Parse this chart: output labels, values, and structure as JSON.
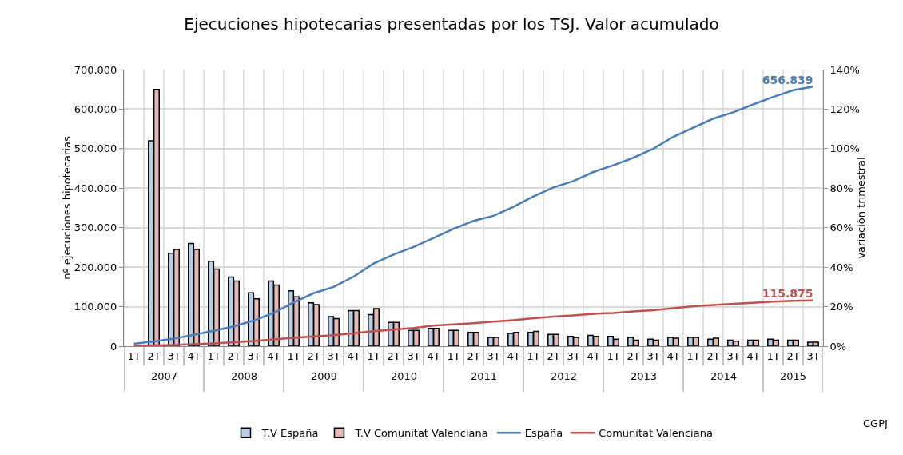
{
  "chart_data": {
    "type": "bar",
    "title": "Ejecuciones hipotecarias presentadas por los TSJ. Valor acumulado",
    "ylabel": "nº ejecuciones hipotecarias",
    "y2label": "variación trimestral",
    "categories": [
      "1T",
      "2T",
      "3T",
      "4T",
      "1T",
      "2T",
      "3T",
      "4T",
      "1T",
      "2T",
      "3T",
      "4T",
      "1T",
      "2T",
      "3T",
      "4T",
      "1T",
      "2T",
      "3T",
      "4T",
      "1T",
      "2T",
      "3T",
      "4T",
      "1T",
      "2T",
      "3T",
      "4T",
      "1T",
      "2T",
      "3T",
      "4T",
      "1T",
      "2T",
      "3T"
    ],
    "series": [
      {
        "name": "T.V España",
        "axis": "y2",
        "color": "#b9cde5",
        "values": [
          null,
          104,
          47,
          52,
          43,
          35,
          27,
          33,
          28,
          22,
          15,
          18,
          16,
          12,
          8,
          9,
          8,
          7,
          4.5,
          6.5,
          7,
          6,
          5,
          5.5,
          5,
          4.5,
          3.5,
          4.5,
          4.5,
          3.5,
          3,
          3,
          3.5,
          3,
          2
        ]
      },
      {
        "name": "T.V Comunitat Valenciana",
        "axis": "y2",
        "color": "#e6b9b8",
        "values": [
          null,
          130,
          49,
          49,
          39,
          33,
          24,
          31,
          25,
          21,
          14,
          18,
          19,
          12,
          8,
          9,
          8,
          7,
          4.5,
          7,
          7.5,
          6,
          4.5,
          5,
          3.5,
          3,
          3,
          4,
          4.5,
          4,
          2.5,
          3,
          3,
          3,
          2
        ]
      },
      {
        "name": "España",
        "type": "line",
        "axis": "y",
        "color": "#4a7ebb",
        "values": [
          6000,
          12000,
          19000,
          29000,
          39000,
          50000,
          65000,
          84000,
          111000,
          134000,
          150000,
          176000,
          209000,
          232000,
          251000,
          274000,
          297000,
          317000,
          330000,
          353000,
          379000,
          402000,
          418000,
          441000,
          458000,
          477000,
          500000,
          530000,
          553000,
          576000,
          592000,
          612000,
          631000,
          648000,
          656839
        ],
        "value_labels": [
          null,
          null,
          null,
          null,
          null,
          null,
          null,
          null,
          null,
          null,
          null,
          null,
          null,
          null,
          null,
          null,
          null,
          null,
          null,
          null,
          null,
          null,
          null,
          null,
          null,
          null,
          null,
          null,
          null,
          null,
          null,
          null,
          null,
          null,
          "656.839"
        ]
      },
      {
        "name": "Comunitat Valenciana",
        "type": "line",
        "axis": "y",
        "color": "#c0504d",
        "values": [
          1000,
          2000,
          3000,
          5000,
          7000,
          10000,
          13000,
          17000,
          21000,
          25000,
          28000,
          33000,
          38000,
          42000,
          46000,
          52000,
          55000,
          58000,
          62000,
          66000,
          71000,
          75000,
          78000,
          82000,
          84000,
          88000,
          91000,
          96000,
          101000,
          104000,
          107000,
          110000,
          113000,
          115000,
          115875
        ],
        "value_labels": [
          null,
          null,
          null,
          null,
          null,
          null,
          null,
          null,
          null,
          null,
          null,
          null,
          null,
          null,
          null,
          null,
          null,
          null,
          null,
          null,
          null,
          null,
          null,
          null,
          null,
          null,
          null,
          null,
          null,
          null,
          null,
          null,
          null,
          null,
          "115.875"
        ]
      }
    ],
    "ylim": [
      0,
      700000
    ],
    "yticks": [
      {
        "value": 0,
        "label": "0"
      },
      {
        "value": 100000,
        "label": "100.000"
      },
      {
        "value": 200000,
        "label": "200.000"
      },
      {
        "value": 300000,
        "label": "300.000"
      },
      {
        "value": 400000,
        "label": "400.000"
      },
      {
        "value": 500000,
        "label": "500.000"
      },
      {
        "value": 600000,
        "label": "600.000"
      },
      {
        "value": 700000,
        "label": "700.000"
      }
    ],
    "y2lim": [
      0,
      140
    ],
    "y2ticks": [
      {
        "value": 0,
        "label": "0%"
      },
      {
        "value": 20,
        "label": "20%"
      },
      {
        "value": 40,
        "label": "40%"
      },
      {
        "value": 60,
        "label": "60%"
      },
      {
        "value": 80,
        "label": "80%"
      },
      {
        "value": 100,
        "label": "100%"
      },
      {
        "value": 120,
        "label": "120%"
      },
      {
        "value": 140,
        "label": "140%"
      }
    ],
    "annotations": [
      "2007",
      "2008",
      "2009",
      "2010",
      "2011",
      "2012",
      "2013",
      "2014",
      "2015",
      "CGPJ"
    ],
    "grid": true,
    "legend": "bottom"
  }
}
